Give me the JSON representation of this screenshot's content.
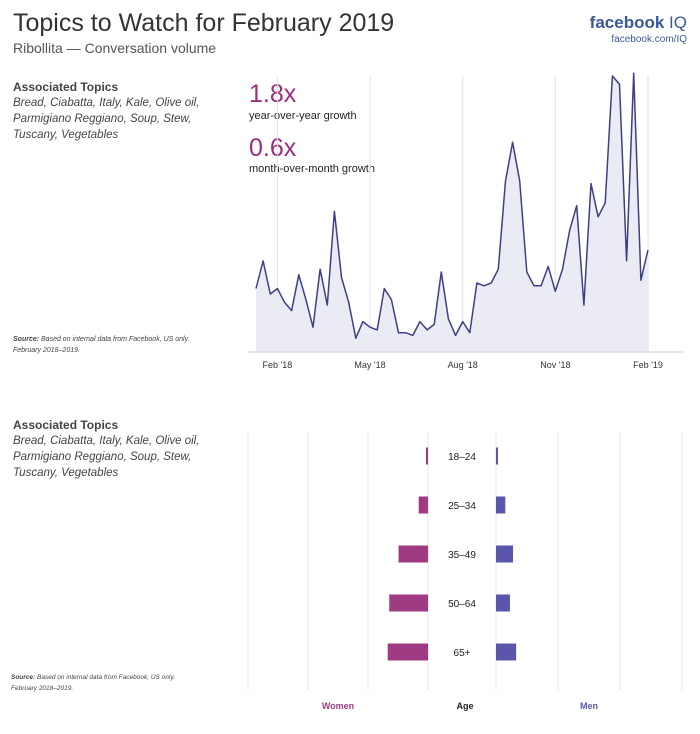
{
  "header": {
    "title": "Topics to Watch for February 2019",
    "subtitle": "Ribollita — Conversation volume",
    "brand": "facebook",
    "brand_suffix": "IQ",
    "brand_url": "facebook.com/IQ"
  },
  "sections": [
    {
      "topics_heading": "Associated Topics",
      "topics_text": "Bread, Ciabatta, Italy, Kale, Olive oil, Parmigiano Reggiano, Soup, Stew, Tuscany, Vegetables",
      "source_label": "Source:",
      "source_text": "Based on internal data from Facebook, US only.",
      "source_period": "February 2018–2019."
    },
    {
      "topics_heading": "Associated Topics",
      "topics_text": "Bread, Ciabatta, Italy, Kale, Olive oil, Parmigiano Reggiano, Soup, Stew, Tuscany, Vegetables",
      "source_label": "Source:",
      "source_text": "Based on internal data from Facebook, US only.",
      "source_period": "February 2018–2019."
    }
  ],
  "stats": [
    {
      "value": "1.8x",
      "label": "year-over-year growth"
    },
    {
      "value": "0.6x",
      "label": "month-over-month growth"
    }
  ],
  "colors": {
    "women": "#a03a82",
    "men": "#5a56ac",
    "line": "#3d3f87",
    "fill": "#ebebf4",
    "accent": "#9c2f7c",
    "brand": "#3b5998"
  },
  "chart_data": [
    {
      "type": "area",
      "title": "Ribollita — Conversation volume",
      "xlabel": "",
      "ylabel": "",
      "x_tick_labels": [
        "Feb '18",
        "May '18",
        "Aug '18",
        "Nov '18",
        "Feb '19"
      ],
      "x_tick_weeks": [
        3,
        16,
        29,
        42,
        55
      ],
      "ylim": [
        0,
        100
      ],
      "grid": "vertical",
      "series": [
        {
          "name": "Conversation volume",
          "values": [
            23,
            33,
            21,
            23,
            18,
            15,
            28,
            19,
            9,
            30,
            17,
            51,
            27,
            18,
            5,
            11,
            9,
            8,
            23,
            19,
            7,
            7,
            6,
            11,
            8,
            10,
            29,
            12,
            6,
            11,
            7,
            25,
            24,
            25,
            30,
            62,
            76,
            62,
            29,
            24,
            24,
            31,
            22,
            30,
            44,
            53,
            17,
            61,
            49,
            54,
            100,
            97,
            33,
            101,
            26,
            37
          ]
        }
      ]
    },
    {
      "type": "bar",
      "orientation": "horizontal-diverging",
      "categories": [
        "18–24",
        "25–34",
        "35–49",
        "50–64",
        "65+"
      ],
      "series": [
        {
          "name": "Women",
          "values": [
            1,
            6,
            19,
            25,
            26
          ]
        },
        {
          "name": "Men",
          "values": [
            1,
            6,
            11,
            9,
            13
          ]
        }
      ],
      "legend": {
        "women_label": "Women",
        "age_label": "Age",
        "men_label": "Men"
      }
    }
  ]
}
